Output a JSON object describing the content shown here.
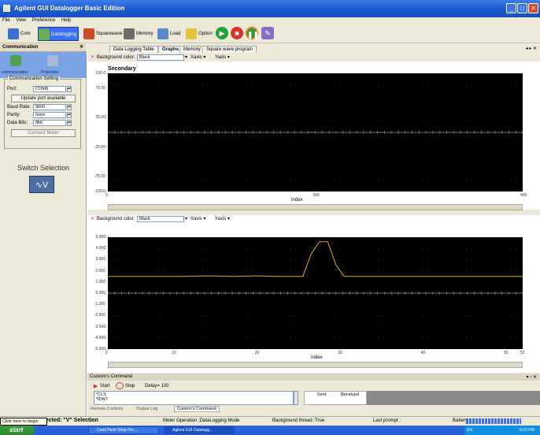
{
  "window": {
    "title": "Agilent GUI Datalogger Basic Edition"
  },
  "menu": [
    "File",
    "View",
    "Preference",
    "Help"
  ],
  "toolbar": {
    "com": "Com",
    "datalogging": "Datalogging",
    "squarewave": "Squarewave",
    "memory": "Memory",
    "load": "Load",
    "option": "Option"
  },
  "left_panel": {
    "title": "Communication",
    "icons": [
      "communication",
      "Properties"
    ],
    "group_title": "Communication Setting",
    "port_label": "Port:",
    "port_value": "COM8",
    "update_button": "Update port available",
    "baud_label": "Baud Rate:",
    "baud_value": "9600",
    "parity_label": "Parity:",
    "parity_value": "none",
    "databits_label": "Data Bits:",
    "databits_value": "8bit",
    "connect_button": "Connect Meter",
    "switch_title": "Switch Selection",
    "switch_symbol": "∿V"
  },
  "tabs": [
    "Data Logging Table",
    "Graphs",
    "Memory",
    "Square wave program"
  ],
  "tab_nav": "◂ ▸ ✕",
  "graph1": {
    "bg_label": "Background color:",
    "bg_value": "Black",
    "xaxis": "Xaxis",
    "yaxis": "Yaxis",
    "title": "Secondary",
    "y_ticks": [
      "100.0",
      "75.00",
      "25.00",
      "-25.00",
      "-75.00",
      "-100.0"
    ],
    "x_ticks": [
      "0",
      "200",
      "400"
    ],
    "x_label": "Index"
  },
  "graph2": {
    "bg_label": "Background color:",
    "bg_value": "Black",
    "xaxis": "Xaxis",
    "yaxis": "Yaxis",
    "y_ticks": [
      "5.000",
      "4.000",
      "3.000",
      "2.000",
      "1.000",
      "0.000",
      "-1.000",
      "-2.000",
      "-3.000",
      "-4.000",
      "-5.000"
    ],
    "x_ticks": [
      "2",
      "10",
      "20",
      "30",
      "40",
      "50",
      "52"
    ],
    "x_label": "Index"
  },
  "chart_data": [
    {
      "type": "line",
      "title": "Secondary",
      "xlabel": "Index",
      "ylabel": "",
      "xlim": [
        0,
        400
      ],
      "ylim": [
        -100,
        100
      ],
      "series": [],
      "grid": true
    },
    {
      "type": "line",
      "title": "",
      "xlabel": "Index",
      "ylabel": "",
      "xlim": [
        2,
        52
      ],
      "ylim": [
        -5,
        5
      ],
      "series": [
        {
          "color": "#d6b400",
          "x": [
            2,
            5,
            8,
            11,
            14,
            17,
            20,
            22,
            24,
            25.5,
            26.5,
            27.5,
            28.5,
            29.5,
            30.5,
            33,
            36,
            40,
            44,
            48,
            52
          ],
          "y": [
            1.5,
            1.5,
            1.5,
            1.5,
            1.55,
            1.5,
            1.55,
            1.5,
            1.5,
            1.5,
            3.5,
            4.6,
            4.6,
            2.5,
            1.5,
            1.5,
            1.5,
            1.5,
            1.5,
            1.5,
            1.5
          ]
        }
      ],
      "grid": true
    }
  ],
  "custom_command": {
    "title": "Custom's Command",
    "start": "Start",
    "stop": "Stop",
    "delay": "Delay= 100",
    "commands": "*CLS\n*IDN?",
    "col_sent": "Sent",
    "col_received": "Received",
    "bottom_tabs": [
      "Remote Controls",
      "Output Log",
      "Custom's Command"
    ]
  },
  "status": {
    "connected": "Connected: \"V\" Selection",
    "operation": "Meter Operation :DataLogging Mode",
    "background": "Background thread :True",
    "last_prompt": "Last prompt :",
    "battery": "Battery",
    "tooltip": "Click here to begin"
  },
  "taskbar": {
    "start": "start",
    "items": [
      "Corel Paint Shop Pro ...",
      "Agilent GUI Datalogg..."
    ],
    "tray_lang": "EN",
    "time": "5:03 PM"
  },
  "colors": {
    "trace": "#d6b400",
    "grid": "#4a4a4a",
    "accent": "#3b6ef5"
  }
}
